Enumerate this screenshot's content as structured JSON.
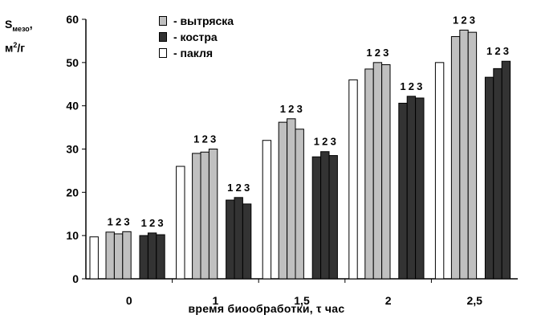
{
  "chart_data": {
    "type": "bar",
    "ylabel_main": "S",
    "ylabel_sub": "мезо",
    "ylabel_suffix": ",",
    "ylabel_unit_base": "м",
    "ylabel_unit_sup": "2",
    "ylabel_unit_tail": "/г",
    "xlabel": "время биообработки,  τ  час",
    "ylim": [
      0,
      60
    ],
    "yticks": [
      "0",
      "10",
      "20",
      "30",
      "40",
      "50",
      "60"
    ],
    "categories": [
      "0",
      "1",
      "1,5",
      "2",
      "2,5"
    ],
    "sample_labels": [
      "1",
      "2",
      "3"
    ],
    "series": [
      {
        "name": "- пакля",
        "color": "#ffffff",
        "values": [
          9.7,
          26.0,
          32.0,
          46.0,
          50.0
        ]
      },
      {
        "name": "- вытряска",
        "color": "#c0c0c0",
        "values": [
          [
            10.8,
            10.4,
            10.9
          ],
          [
            29.0,
            29.3,
            30.0
          ],
          [
            36.2,
            37.0,
            34.6
          ],
          [
            48.5,
            50.0,
            49.5
          ],
          [
            56.0,
            57.5,
            57.0
          ]
        ]
      },
      {
        "name": "- костра",
        "color": "#333333",
        "values": [
          [
            10.0,
            10.6,
            10.2
          ],
          [
            18.2,
            18.8,
            17.3
          ],
          [
            28.2,
            29.4,
            28.5
          ],
          [
            40.6,
            42.2,
            41.8
          ],
          [
            46.6,
            48.6,
            50.3
          ]
        ]
      }
    ],
    "grid": false,
    "legend_position": "top-center"
  }
}
